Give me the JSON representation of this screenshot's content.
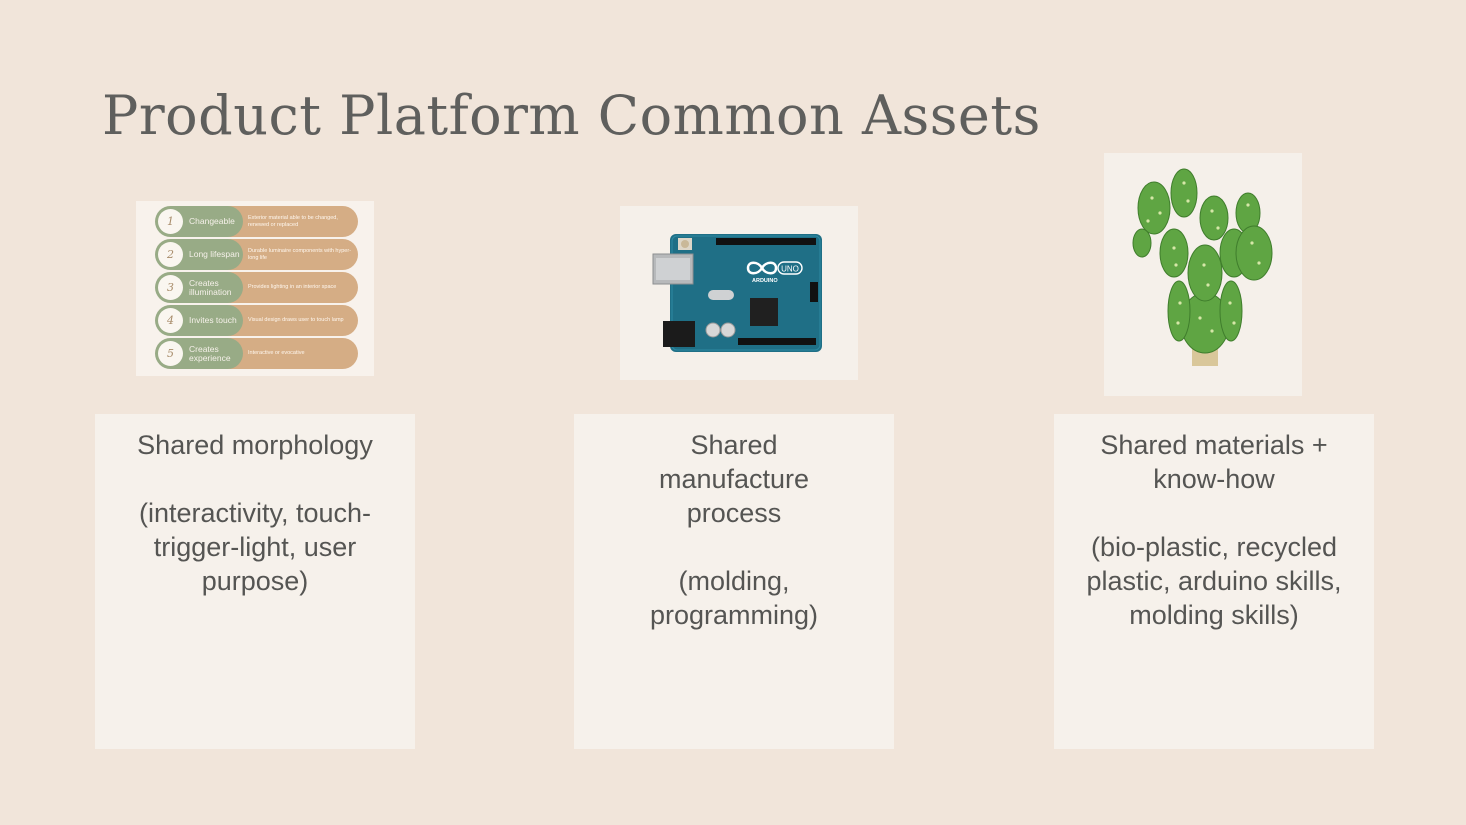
{
  "slide": {
    "title": "Product Platform Common Assets"
  },
  "morphology_image": {
    "rows": [
      {
        "num": "1",
        "label": "Changeable",
        "desc": "Exterior material able to be changed, renewed or replaced"
      },
      {
        "num": "2",
        "label": "Long lifespan",
        "desc": "Durable luminaire components with hyper-long life"
      },
      {
        "num": "3",
        "label": "Creates illumination",
        "desc": "Provides lighting in an interior space"
      },
      {
        "num": "4",
        "label": "Invites touch",
        "desc": "Visual design draws user to touch lamp"
      },
      {
        "num": "5",
        "label": "Creates experience",
        "desc": "Interactive or evocative"
      }
    ]
  },
  "arduino_image": {
    "logo_text": "UNO",
    "brand_text": "ARDUINO"
  },
  "cards": [
    {
      "heading": "Shared morphology",
      "detail": "(interactivity, touch-trigger-light, user purpose)"
    },
    {
      "heading": "Shared manufacture process",
      "detail": "(molding, programming)"
    },
    {
      "heading": "Shared materials + know-how",
      "detail": "(bio-plastic, recycled plastic, arduino skills, molding skills)"
    }
  ],
  "colors": {
    "background": "#f1e5da",
    "card": "#f6f1eb",
    "green": "#98ab86",
    "tan": "#d5ad85",
    "board": "#1f6f86"
  }
}
